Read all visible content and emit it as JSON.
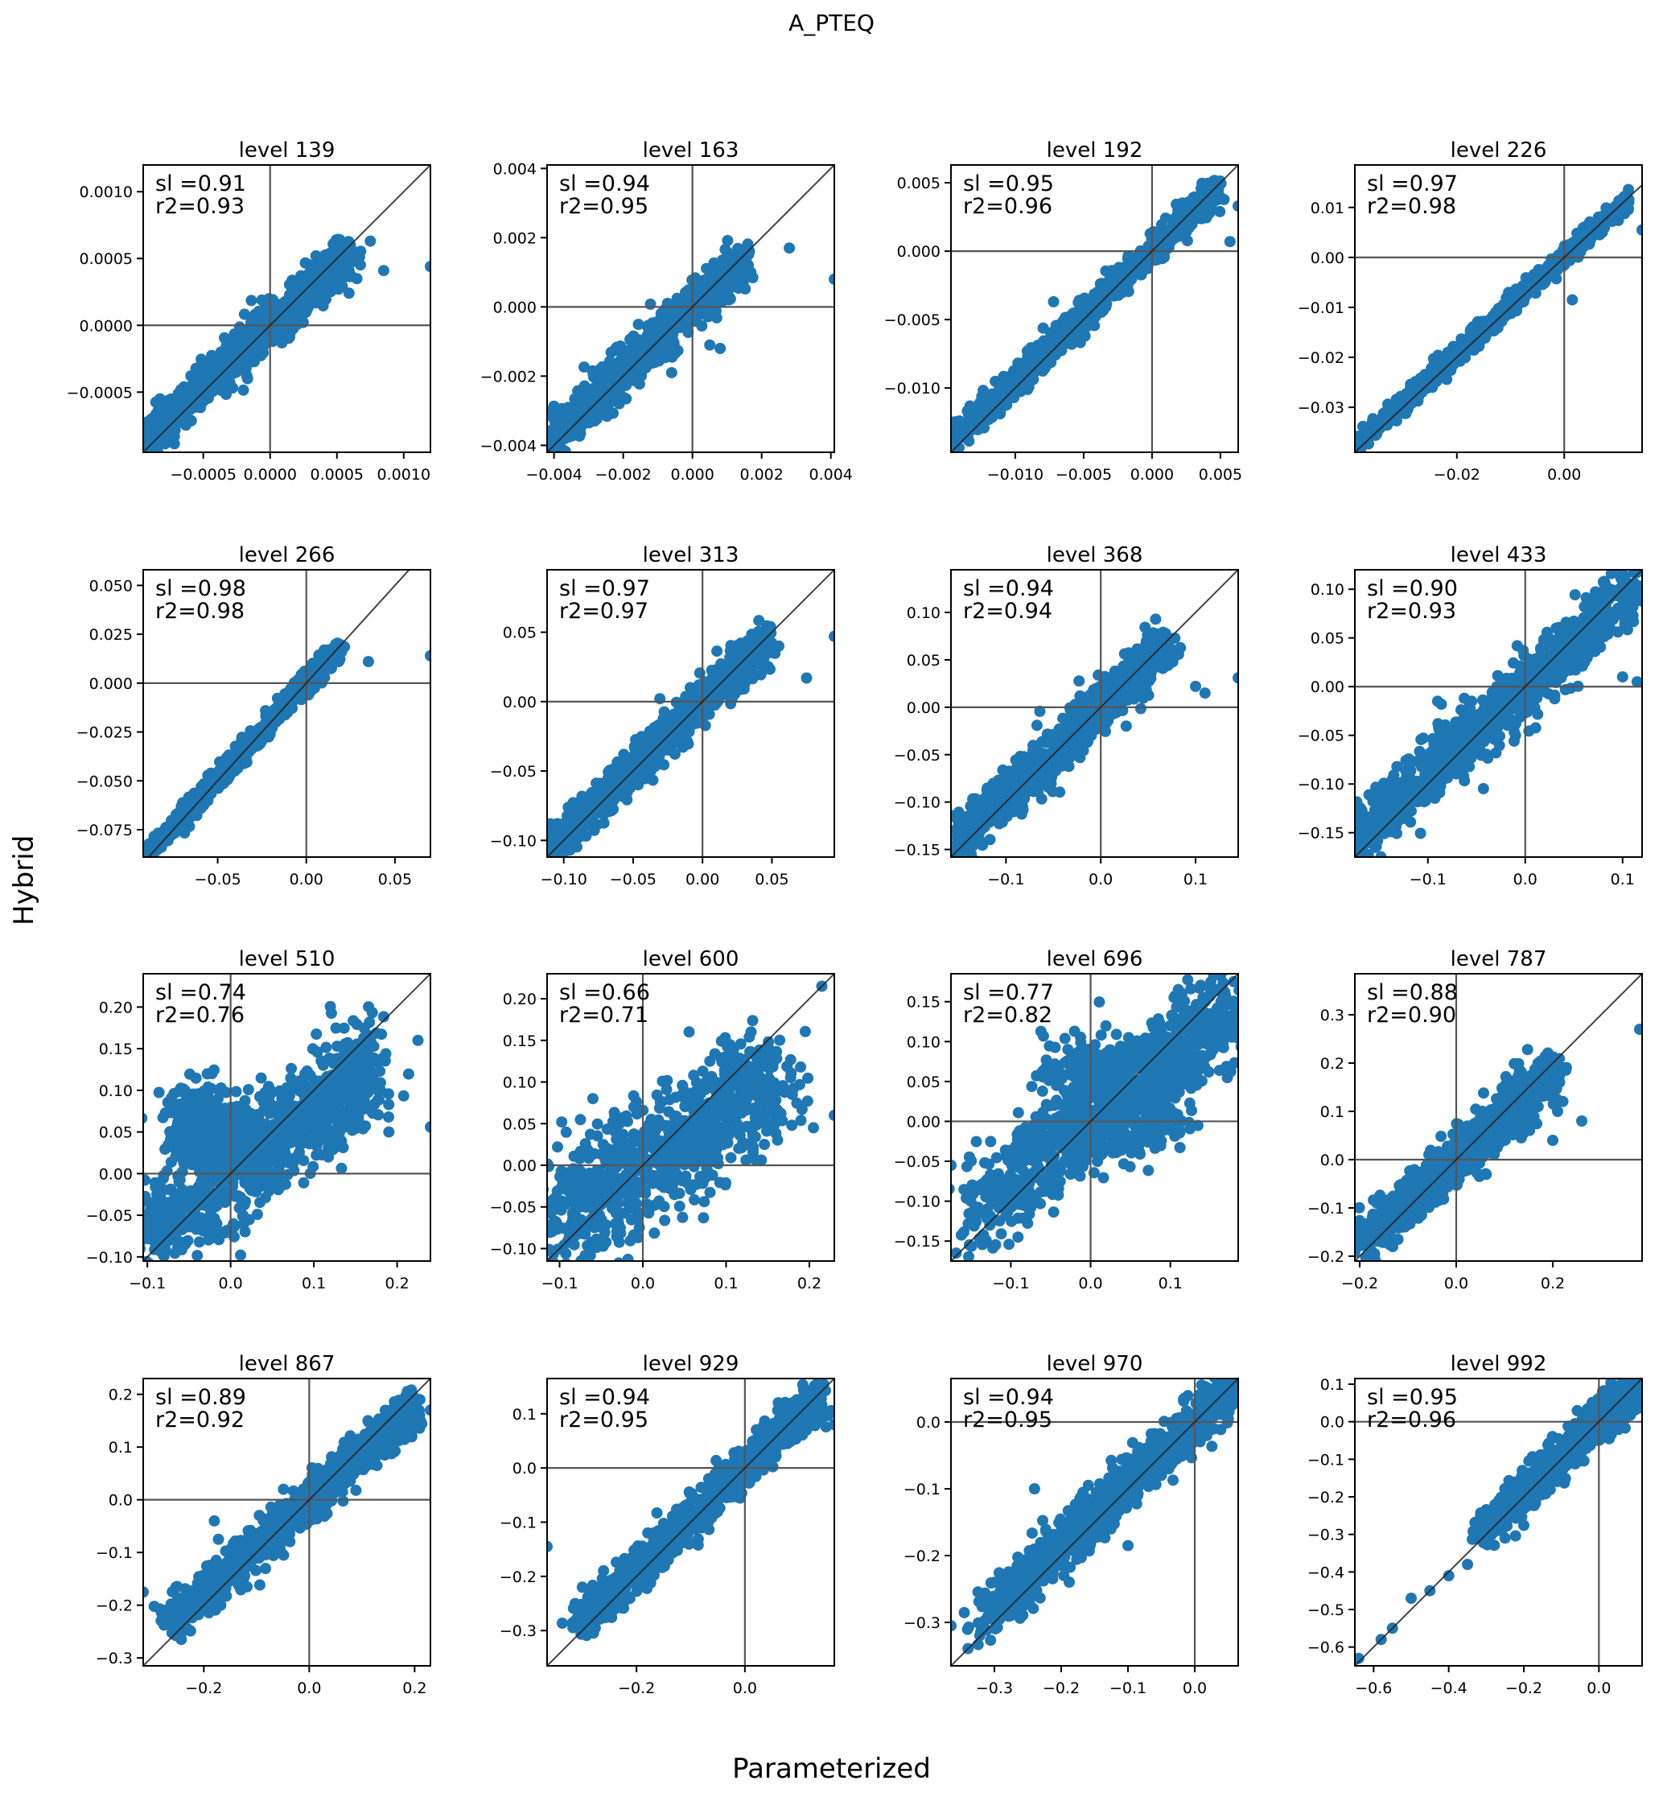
{
  "figure": {
    "title": "A_PTEQ",
    "xlabel": "Parameterized",
    "ylabel": "Hybrid",
    "point_color": "#1f77b4"
  },
  "chart_data": [
    {
      "type": "scatter",
      "title": "level 139",
      "sl": "sl =0.91",
      "r2": "r2=0.93",
      "xlim": [
        -0.00095,
        0.0012
      ],
      "ylim": [
        -0.00095,
        0.0012
      ],
      "xticks": [
        -0.0005,
        0.0,
        0.0005,
        0.001
      ],
      "xticklabels": [
        "−0.0005",
        "0.0000",
        "0.0005",
        "0.0010"
      ],
      "yticks": [
        -0.0005,
        0.0,
        0.0005,
        0.001
      ],
      "yticklabels": [
        "−0.0005",
        "0.0000",
        "0.0005",
        "0.0010"
      ],
      "spread": 8e-05,
      "pmin": -0.00095,
      "pmax": 0.0006,
      "slope": 0.91,
      "outliers": [
        [
          0.00075,
          0.00063
        ],
        [
          0.00085,
          0.00041
        ],
        [
          0.0012,
          0.00044
        ],
        [
          0.00055,
          0.00048
        ]
      ]
    },
    {
      "type": "scatter",
      "title": "level 163",
      "sl": "sl =0.94",
      "r2": "r2=0.95",
      "xlim": [
        -0.0042,
        0.0041
      ],
      "ylim": [
        -0.0042,
        0.0041
      ],
      "xticks": [
        -0.004,
        -0.002,
        0.0,
        0.002,
        0.004
      ],
      "xticklabels": [
        "−0.004",
        "−0.002",
        "0.000",
        "0.002",
        "0.004"
      ],
      "yticks": [
        -0.004,
        -0.002,
        0.0,
        0.002,
        0.004
      ],
      "yticklabels": [
        "−0.004",
        "−0.002",
        "0.000",
        "0.002",
        "0.004"
      ],
      "spread": 0.0003,
      "pmin": -0.0042,
      "pmax": 0.0015,
      "slope": 0.94,
      "outliers": [
        [
          0.0028,
          0.0017
        ],
        [
          0.0041,
          0.0008
        ],
        [
          -0.0006,
          -0.0019
        ],
        [
          0.0005,
          -0.0011
        ],
        [
          0.0008,
          -0.0012
        ]
      ]
    },
    {
      "type": "scatter",
      "title": "level 192",
      "sl": "sl =0.95",
      "r2": "r2=0.96",
      "xlim": [
        -0.0147,
        0.0063
      ],
      "ylim": [
        -0.0147,
        0.0063
      ],
      "xticks": [
        -0.01,
        -0.005,
        0.0,
        0.005
      ],
      "xticklabels": [
        "−0.010",
        "−0.005",
        "0.000",
        "0.005"
      ],
      "yticks": [
        -0.01,
        -0.005,
        0.0,
        0.005
      ],
      "yticklabels": [
        "−0.010",
        "−0.005",
        "0.000",
        "0.005"
      ],
      "spread": 0.0005,
      "pmin": -0.0147,
      "pmax": 0.005,
      "slope": 0.95,
      "outliers": [
        [
          0.0063,
          0.0033
        ],
        [
          0.0057,
          0.0007
        ],
        [
          -0.0072,
          -0.0037
        ],
        [
          -0.0049,
          -0.0062
        ]
      ]
    },
    {
      "type": "scatter",
      "title": "level 226",
      "sl": "sl =0.97",
      "r2": "r2=0.98",
      "xlim": [
        -0.039,
        0.0145
      ],
      "ylim": [
        -0.039,
        0.0185
      ],
      "xticks": [
        -0.02,
        0.0
      ],
      "xticklabels": [
        "−0.02",
        "0.00"
      ],
      "yticks": [
        -0.03,
        -0.02,
        -0.01,
        0.0,
        0.01
      ],
      "yticklabels": [
        "−0.03",
        "−0.02",
        "−0.01",
        "0.00",
        "0.01"
      ],
      "spread": 0.0009,
      "pmin": -0.039,
      "pmax": 0.012,
      "slope": 0.97,
      "outliers": [
        [
          0.0145,
          0.0055
        ],
        [
          0.0015,
          -0.0085
        ]
      ]
    },
    {
      "type": "scatter",
      "title": "level 266",
      "sl": "sl =0.98",
      "r2": "r2=0.98",
      "xlim": [
        -0.092,
        0.07
      ],
      "ylim": [
        -0.089,
        0.058
      ],
      "xticks": [
        -0.05,
        0.0,
        0.05
      ],
      "xticklabels": [
        "−0.05",
        "0.00",
        "0.05"
      ],
      "yticks": [
        -0.075,
        -0.05,
        -0.025,
        0.0,
        0.025,
        0.05
      ],
      "yticklabels": [
        "−0.075",
        "−0.050",
        "−0.025",
        "0.000",
        "0.025",
        "0.050"
      ],
      "spread": 0.0025,
      "pmin": -0.092,
      "pmax": 0.02,
      "slope": 0.98,
      "outliers": [
        [
          0.07,
          0.014
        ],
        [
          0.035,
          0.011
        ]
      ]
    },
    {
      "type": "scatter",
      "title": "level 313",
      "sl": "sl =0.97",
      "r2": "r2=0.97",
      "xlim": [
        -0.112,
        0.095
      ],
      "ylim": [
        -0.112,
        0.095
      ],
      "xticks": [
        -0.1,
        -0.05,
        0.0,
        0.05
      ],
      "xticklabels": [
        "−0.10",
        "−0.05",
        "0.00",
        "0.05"
      ],
      "yticks": [
        -0.1,
        -0.05,
        0.0,
        0.05
      ],
      "yticklabels": [
        "−0.10",
        "−0.05",
        "0.00",
        "0.05"
      ],
      "spread": 0.007,
      "pmin": -0.112,
      "pmax": 0.045,
      "slope": 0.97,
      "outliers": [
        [
          0.095,
          0.047
        ],
        [
          0.075,
          0.017
        ],
        [
          0.055,
          0.04
        ]
      ]
    },
    {
      "type": "scatter",
      "title": "level 368",
      "sl": "sl =0.94",
      "r2": "r2=0.94",
      "xlim": [
        -0.158,
        0.145
      ],
      "ylim": [
        -0.158,
        0.145
      ],
      "xticks": [
        -0.1,
        0.0,
        0.1
      ],
      "xticklabels": [
        "−0.1",
        "0.0",
        "0.1"
      ],
      "yticks": [
        -0.15,
        -0.1,
        -0.05,
        0.0,
        0.05,
        0.1
      ],
      "yticklabels": [
        "−0.15",
        "−0.10",
        "−0.05",
        "0.00",
        "0.05",
        "0.10"
      ],
      "spread": 0.012,
      "pmin": -0.158,
      "pmax": 0.07,
      "slope": 0.94,
      "outliers": [
        [
          0.145,
          0.031
        ],
        [
          0.11,
          0.015
        ],
        [
          0.1,
          0.022
        ]
      ]
    },
    {
      "type": "scatter",
      "title": "level 433",
      "sl": "sl =0.90",
      "r2": "r2=0.93",
      "xlim": [
        -0.175,
        0.12
      ],
      "ylim": [
        -0.175,
        0.12
      ],
      "xticks": [
        -0.1,
        0.0,
        0.1
      ],
      "xticklabels": [
        "−0.1",
        "0.0",
        "0.1"
      ],
      "yticks": [
        -0.15,
        -0.1,
        -0.05,
        0.0,
        0.05,
        0.1
      ],
      "yticklabels": [
        "−0.15",
        "−0.10",
        "−0.05",
        "0.00",
        "0.05",
        "0.10"
      ],
      "spread": 0.015,
      "pmin": -0.175,
      "pmax": 0.11,
      "slope": 0.9,
      "outliers": [
        [
          -0.09,
          -0.015
        ],
        [
          -0.01,
          -0.05
        ],
        [
          0.1,
          0.01
        ],
        [
          0.115,
          0.005
        ]
      ]
    },
    {
      "type": "scatter",
      "title": "level 510",
      "sl": "sl =0.74",
      "r2": "r2=0.76",
      "xlim": [
        -0.105,
        0.24
      ],
      "ylim": [
        -0.105,
        0.24
      ],
      "xticks": [
        -0.1,
        0.0,
        0.1,
        0.2
      ],
      "xticklabels": [
        "−0.1",
        "0.0",
        "0.1",
        "0.2"
      ],
      "yticks": [
        -0.1,
        -0.05,
        0.0,
        0.05,
        0.1,
        0.15,
        0.2
      ],
      "yticklabels": [
        "−0.10",
        "−0.05",
        "0.00",
        "0.05",
        "0.10",
        "0.15",
        "0.20"
      ],
      "spread": 0.03,
      "pmin": -0.105,
      "pmax": 0.17,
      "slope": 0.74,
      "outliers": [
        [
          0.24,
          0.056
        ],
        [
          0.225,
          0.16
        ],
        [
          0.19,
          0.05
        ],
        [
          0.18,
          0.1
        ]
      ],
      "cluster": [
        [
          -0.03,
          0.06,
          0.025,
          0.025,
          250
        ]
      ]
    },
    {
      "type": "scatter",
      "title": "level 600",
      "sl": "sl =0.66",
      "r2": "r2=0.71",
      "xlim": [
        -0.115,
        0.23
      ],
      "ylim": [
        -0.115,
        0.23
      ],
      "xticks": [
        -0.1,
        0.0,
        0.1,
        0.2
      ],
      "xticklabels": [
        "−0.1",
        "0.0",
        "0.1",
        "0.2"
      ],
      "yticks": [
        -0.1,
        -0.05,
        0.0,
        0.05,
        0.1,
        0.15,
        0.2
      ],
      "yticklabels": [
        "−0.10",
        "−0.05",
        "0.00",
        "0.05",
        "0.10",
        "0.15",
        "0.20"
      ],
      "spread": 0.035,
      "pmin": -0.115,
      "pmax": 0.16,
      "slope": 0.66,
      "outliers": [
        [
          0.215,
          0.215
        ],
        [
          0.23,
          0.06
        ],
        [
          0.205,
          0.045
        ],
        [
          -0.06,
          0.08
        ],
        [
          0.13,
          0.16
        ]
      ]
    },
    {
      "type": "scatter",
      "title": "level 696",
      "sl": "sl =0.77",
      "r2": "r2=0.82",
      "xlim": [
        -0.175,
        0.185
      ],
      "ylim": [
        -0.175,
        0.185
      ],
      "xticks": [
        -0.1,
        0.0,
        0.1
      ],
      "xticklabels": [
        "−0.1",
        "0.0",
        "0.1"
      ],
      "yticks": [
        -0.15,
        -0.1,
        -0.05,
        0.0,
        0.05,
        0.1,
        0.15
      ],
      "yticklabels": [
        "−0.15",
        "−0.10",
        "−0.05",
        "0.00",
        "0.05",
        "0.10",
        "0.15"
      ],
      "spread": 0.03,
      "pmin": -0.15,
      "pmax": 0.175,
      "slope": 0.77,
      "outliers": [
        [
          -0.175,
          -0.055
        ],
        [
          -0.15,
          -0.1
        ],
        [
          0.11,
          0.165
        ],
        [
          0.18,
          0.13
        ]
      ],
      "cluster": [
        [
          0.0,
          0.06,
          0.03,
          0.025,
          200
        ],
        [
          0.07,
          0.0,
          0.025,
          0.02,
          180
        ]
      ]
    },
    {
      "type": "scatter",
      "title": "level 787",
      "sl": "sl =0.88",
      "r2": "r2=0.90",
      "xlim": [
        -0.21,
        0.385
      ],
      "ylim": [
        -0.21,
        0.385
      ],
      "xticks": [
        -0.2,
        0.0,
        0.2
      ],
      "xticklabels": [
        "−0.2",
        "0.0",
        "0.2"
      ],
      "yticks": [
        -0.2,
        -0.1,
        0.0,
        0.1,
        0.2,
        0.3
      ],
      "yticklabels": [
        "−0.2",
        "−0.1",
        "0.0",
        "0.1",
        "0.2",
        "0.3"
      ],
      "spread": 0.025,
      "pmin": -0.2,
      "pmax": 0.2,
      "slope": 0.88,
      "outliers": [
        [
          0.38,
          0.27
        ],
        [
          0.26,
          0.08
        ],
        [
          0.2,
          0.04
        ],
        [
          0.21,
          0.1
        ],
        [
          -0.2,
          -0.16
        ]
      ]
    },
    {
      "type": "scatter",
      "title": "level 867",
      "sl": "sl =0.89",
      "r2": "r2=0.92",
      "xlim": [
        -0.315,
        0.23
      ],
      "ylim": [
        -0.315,
        0.23
      ],
      "xticks": [
        -0.2,
        0.0,
        0.2
      ],
      "xticklabels": [
        "−0.2",
        "0.0",
        "0.2"
      ],
      "yticks": [
        -0.3,
        -0.2,
        -0.1,
        0.0,
        0.1,
        0.2
      ],
      "yticklabels": [
        "−0.3",
        "−0.2",
        "−0.1",
        "0.0",
        "0.1",
        "0.2"
      ],
      "spread": 0.02,
      "pmin": -0.27,
      "pmax": 0.2,
      "slope": 0.89,
      "outliers": [
        [
          -0.315,
          -0.175
        ],
        [
          -0.28,
          -0.215
        ],
        [
          0.23,
          0.17
        ],
        [
          0.21,
          0.19
        ],
        [
          -0.18,
          -0.04
        ]
      ]
    },
    {
      "type": "scatter",
      "title": "level 929",
      "sl": "sl =0.94",
      "r2": "r2=0.95",
      "xlim": [
        -0.365,
        0.165
      ],
      "ylim": [
        -0.365,
        0.165
      ],
      "xticks": [
        -0.2,
        0.0
      ],
      "xticklabels": [
        "−0.2",
        "0.0"
      ],
      "yticks": [
        -0.3,
        -0.2,
        -0.1,
        0.0,
        0.1
      ],
      "yticklabels": [
        "−0.3",
        "−0.2",
        "−0.1",
        "0.0",
        "0.1"
      ],
      "spread": 0.018,
      "pmin": -0.31,
      "pmax": 0.14,
      "slope": 0.94,
      "outliers": [
        [
          -0.365,
          -0.145
        ],
        [
          0.165,
          0.08
        ],
        [
          0.14,
          0.09
        ],
        [
          -0.3,
          -0.22
        ]
      ]
    },
    {
      "type": "scatter",
      "title": "level 970",
      "sl": "sl =0.94",
      "r2": "r2=0.95",
      "xlim": [
        -0.365,
        0.065
      ],
      "ylim": [
        -0.365,
        0.065
      ],
      "xticks": [
        -0.3,
        -0.2,
        -0.1,
        0.0
      ],
      "xticklabels": [
        "−0.3",
        "−0.2",
        "−0.1",
        "0.0"
      ],
      "yticks": [
        -0.3,
        -0.2,
        -0.1,
        0.0
      ],
      "yticklabels": [
        "−0.3",
        "−0.2",
        "−0.1",
        "0.0"
      ],
      "spread": 0.018,
      "pmin": -0.33,
      "pmax": 0.06,
      "slope": 0.94,
      "outliers": [
        [
          -0.365,
          -0.305
        ],
        [
          -0.24,
          -0.1
        ],
        [
          -0.3,
          -0.24
        ],
        [
          -0.1,
          -0.185
        ],
        [
          -0.26,
          -0.21
        ]
      ]
    },
    {
      "type": "scatter",
      "title": "level 992",
      "sl": "sl =0.95",
      "r2": "r2=0.96",
      "xlim": [
        -0.65,
        0.115
      ],
      "ylim": [
        -0.65,
        0.115
      ],
      "xticks": [
        -0.6,
        -0.4,
        -0.2,
        0.0
      ],
      "xticklabels": [
        "−0.6",
        "−0.4",
        "−0.2",
        "0.0"
      ],
      "yticks": [
        -0.6,
        -0.5,
        -0.4,
        -0.3,
        -0.2,
        -0.1,
        0.0,
        0.1
      ],
      "yticklabels": [
        "−0.6",
        "−0.5",
        "−0.4",
        "−0.3",
        "−0.2",
        "−0.1",
        "0.0",
        "0.1"
      ],
      "spread": 0.025,
      "pmin": -0.32,
      "pmax": 0.1,
      "slope": 0.95,
      "outliers": [
        [
          -0.64,
          -0.63
        ],
        [
          -0.55,
          -0.55
        ],
        [
          -0.5,
          -0.47
        ],
        [
          -0.45,
          -0.45
        ],
        [
          -0.4,
          -0.41
        ],
        [
          -0.35,
          -0.38
        ],
        [
          -0.3,
          -0.32
        ],
        [
          -0.25,
          -0.31
        ],
        [
          -0.58,
          -0.58
        ]
      ]
    }
  ]
}
